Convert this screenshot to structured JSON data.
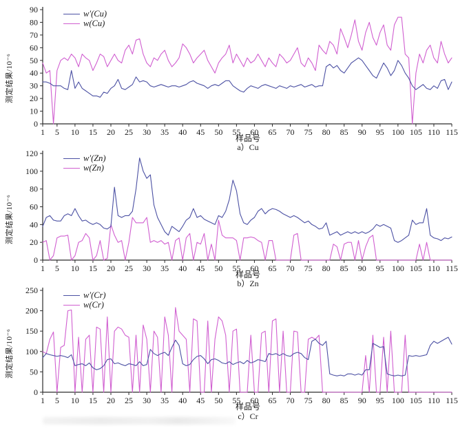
{
  "colors": {
    "series_corrected": "#4b50a3",
    "series_measured": "#d05ed0",
    "axis": "#2a2a2a",
    "text": "#1a1a1a"
  },
  "axis_labels": {
    "x_label": "样品号",
    "y_label": "测定结果/10⁻⁶"
  },
  "chart_data": [
    {
      "type": "line",
      "subtitle": "a）Cu",
      "xlabel": "样品号",
      "ylabel": "测定结果/10⁻⁶",
      "x_start": 1,
      "x_end": 115,
      "xticks": [
        1,
        5,
        10,
        15,
        20,
        25,
        30,
        35,
        40,
        45,
        50,
        55,
        60,
        65,
        70,
        75,
        80,
        85,
        90,
        95,
        100,
        105,
        110,
        115
      ],
      "ylim": [
        0,
        90
      ],
      "ytick_step": 10,
      "legend_position": "top-left",
      "grid": false,
      "series": [
        {
          "name": "w′(Cu)",
          "color_key": "series_corrected",
          "values": [
            33,
            33,
            32,
            30,
            30,
            30,
            28,
            27,
            42,
            28,
            33,
            28,
            26,
            24,
            22,
            22,
            21,
            25,
            24,
            28,
            30,
            35,
            28,
            27,
            29,
            31,
            37,
            33,
            34,
            33,
            30,
            29,
            30,
            31,
            30,
            29,
            30,
            30,
            29,
            30,
            31,
            33,
            34,
            32,
            31,
            30,
            28,
            30,
            31,
            30,
            32,
            34,
            34,
            30,
            28,
            26,
            25,
            28,
            30,
            29,
            28,
            30,
            31,
            30,
            29,
            28,
            30,
            29,
            28,
            30,
            29,
            30,
            31,
            29,
            30,
            31,
            29,
            30,
            30,
            45,
            47,
            44,
            46,
            42,
            40,
            44,
            48,
            50,
            52,
            50,
            46,
            42,
            38,
            36,
            42,
            48,
            44,
            38,
            42,
            50,
            46,
            40,
            36,
            30,
            27,
            29,
            31,
            28,
            27,
            30,
            28,
            34,
            35,
            27,
            33
          ]
        },
        {
          "name": "w(Cu)",
          "color_key": "series_measured",
          "values": [
            48,
            40,
            42,
            0,
            42,
            50,
            52,
            50,
            55,
            52,
            45,
            55,
            52,
            50,
            42,
            48,
            55,
            53,
            45,
            50,
            55,
            50,
            48,
            58,
            62,
            55,
            66,
            67,
            55,
            48,
            45,
            52,
            50,
            55,
            58,
            50,
            45,
            48,
            52,
            63,
            60,
            55,
            48,
            52,
            55,
            58,
            50,
            45,
            40,
            48,
            52,
            55,
            62,
            48,
            55,
            50,
            45,
            52,
            48,
            50,
            55,
            50,
            45,
            52,
            48,
            45,
            55,
            52,
            48,
            50,
            55,
            60,
            48,
            45,
            52,
            48,
            42,
            62,
            58,
            55,
            65,
            62,
            55,
            75,
            68,
            60,
            70,
            82,
            65,
            58,
            72,
            80,
            68,
            62,
            72,
            78,
            62,
            58,
            78,
            84,
            84,
            55,
            52,
            0,
            40,
            55,
            48,
            58,
            62,
            52,
            48,
            65,
            55,
            48,
            52
          ]
        }
      ]
    },
    {
      "type": "line",
      "subtitle": "b）Zn",
      "xlabel": "样品号",
      "ylabel": "测定结果/10⁻⁶",
      "x_start": 1,
      "x_end": 115,
      "xticks": [
        1,
        5,
        10,
        15,
        20,
        25,
        30,
        35,
        40,
        45,
        50,
        55,
        60,
        65,
        70,
        75,
        80,
        85,
        90,
        95,
        100,
        105,
        110,
        115
      ],
      "ylim": [
        0,
        120
      ],
      "ytick_step": 20,
      "legend_position": "top-left",
      "grid": false,
      "series": [
        {
          "name": "w′(Zn)",
          "color_key": "series_corrected",
          "values": [
            38,
            48,
            50,
            45,
            44,
            44,
            50,
            52,
            50,
            58,
            50,
            44,
            45,
            42,
            40,
            42,
            40,
            36,
            35,
            38,
            82,
            50,
            48,
            50,
            50,
            55,
            80,
            115,
            100,
            92,
            96,
            62,
            48,
            40,
            32,
            28,
            38,
            35,
            32,
            38,
            45,
            48,
            58,
            48,
            50,
            46,
            44,
            42,
            40,
            50,
            48,
            55,
            68,
            90,
            78,
            52,
            42,
            40,
            45,
            48,
            55,
            58,
            52,
            56,
            58,
            57,
            55,
            52,
            50,
            48,
            50,
            48,
            45,
            42,
            44,
            40,
            38,
            35,
            36,
            42,
            28,
            30,
            32,
            28,
            30,
            32,
            30,
            32,
            30,
            32,
            30,
            32,
            35,
            40,
            38,
            40,
            38,
            36,
            22,
            20,
            22,
            25,
            28,
            45,
            40,
            42,
            42,
            58,
            28,
            25,
            24,
            22,
            25,
            24,
            26
          ]
        },
        {
          "name": "w(Zn)",
          "color_key": "series_measured",
          "values": [
            20,
            22,
            0,
            5,
            25,
            27,
            27,
            28,
            0,
            5,
            20,
            22,
            30,
            25,
            0,
            5,
            22,
            0,
            2,
            40,
            28,
            20,
            22,
            0,
            20,
            48,
            42,
            42,
            42,
            48,
            20,
            22,
            20,
            22,
            18,
            20,
            0,
            22,
            25,
            0,
            25,
            30,
            0,
            20,
            18,
            30,
            0,
            18,
            0,
            45,
            28,
            25,
            25,
            25,
            22,
            0,
            25,
            25,
            26,
            25,
            22,
            20,
            0,
            22,
            22,
            0,
            0,
            0,
            0,
            0,
            28,
            30,
            0,
            0,
            0,
            0,
            0,
            0,
            0,
            0,
            0,
            18,
            15,
            0,
            18,
            20,
            20,
            0,
            22,
            0,
            15,
            25,
            28,
            0,
            0,
            0,
            0,
            0,
            0,
            0,
            0,
            0,
            0,
            0,
            0,
            18,
            0,
            20,
            0,
            0,
            0,
            0,
            0,
            0,
            0
          ]
        }
      ]
    },
    {
      "type": "line",
      "subtitle": "c）Cr",
      "xlabel": "样品号",
      "ylabel": "测定结果/10⁻⁶",
      "x_start": 1,
      "x_end": 115,
      "xticks": [
        1,
        5,
        10,
        15,
        20,
        25,
        30,
        35,
        40,
        45,
        50,
        55,
        60,
        65,
        70,
        75,
        80,
        85,
        90,
        95,
        100,
        105,
        110,
        115
      ],
      "ylim": [
        0,
        250
      ],
      "ytick_step": 50,
      "legend_position": "top-left",
      "grid": false,
      "series": [
        {
          "name": "w′(Cr)",
          "color_key": "series_corrected",
          "values": [
            85,
            95,
            92,
            90,
            88,
            90,
            88,
            85,
            92,
            65,
            68,
            70,
            65,
            72,
            60,
            55,
            58,
            65,
            80,
            82,
            70,
            72,
            68,
            65,
            70,
            68,
            65,
            75,
            65,
            68,
            105,
            95,
            90,
            95,
            98,
            90,
            110,
            128,
            115,
            70,
            65,
            68,
            80,
            88,
            90,
            82,
            70,
            80,
            82,
            78,
            72,
            70,
            75,
            68,
            72,
            75,
            70,
            78,
            72,
            75,
            80,
            78,
            75,
            95,
            92,
            95,
            90,
            95,
            90,
            88,
            95,
            98,
            95,
            85,
            80,
            125,
            130,
            120,
            115,
            125,
            45,
            42,
            40,
            42,
            40,
            45,
            45,
            42,
            45,
            42,
            55,
            55,
            120,
            115,
            110,
            112,
            45,
            42,
            40,
            42,
            40,
            42,
            90,
            88,
            90,
            88,
            90,
            92,
            115,
            125,
            120,
            125,
            130,
            135,
            118
          ]
        },
        {
          "name": "w(Cr)",
          "color_key": "series_measured",
          "values": [
            100,
            95,
            130,
            148,
            0,
            110,
            115,
            200,
            202,
            0,
            135,
            0,
            130,
            140,
            0,
            160,
            155,
            0,
            185,
            0,
            150,
            160,
            155,
            140,
            135,
            0,
            140,
            0,
            165,
            130,
            0,
            150,
            135,
            0,
            185,
            140,
            0,
            208,
            150,
            140,
            130,
            0,
            180,
            175,
            0,
            0,
            175,
            0,
            130,
            185,
            175,
            140,
            0,
            150,
            155,
            0,
            0,
            0,
            140,
            0,
            0,
            145,
            150,
            0,
            175,
            180,
            0,
            150,
            0,
            0,
            150,
            148,
            0,
            0,
            130,
            135,
            130,
            140,
            0,
            0,
            0,
            0,
            0,
            0,
            0,
            0,
            0,
            0,
            0,
            0,
            90,
            0,
            140,
            0,
            0,
            135,
            0,
            150,
            0,
            0,
            0,
            140,
            0,
            0,
            0,
            0,
            0,
            0,
            0,
            0,
            0,
            0,
            0,
            0,
            0
          ]
        }
      ]
    }
  ]
}
